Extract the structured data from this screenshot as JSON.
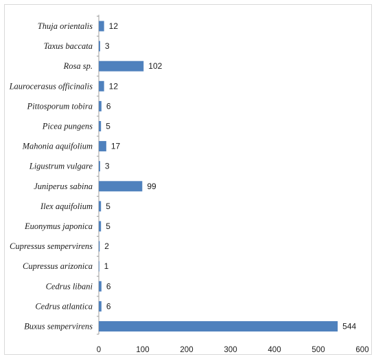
{
  "chart_data": {
    "type": "bar",
    "orientation": "horizontal",
    "categories": [
      "Thuja orientalis",
      "Taxus baccata",
      "Rosa sp.",
      "Laurocerasus officinalis",
      "Pittosporum tobira",
      "Picea pungens",
      "Mahonia aquifolium",
      "Ligustrum vulgare",
      "Juniperus sabina",
      "Ilex aquifolium",
      "Euonymus japonica",
      "Cupressus sempervirens",
      "Cupressus arizonica",
      "Cedrus libani",
      "Cedrus atlantica",
      "Buxus sempervirens"
    ],
    "values": [
      12,
      3,
      102,
      12,
      6,
      5,
      17,
      3,
      99,
      5,
      5,
      2,
      1,
      6,
      6,
      544
    ],
    "data_labels": [
      "12",
      "3",
      "102",
      "12",
      "6",
      "5",
      "17",
      "3",
      "99",
      "5",
      "5",
      "2",
      "1",
      "6",
      "6",
      "544"
    ],
    "xlim": [
      0,
      600
    ],
    "x_ticks": [
      0,
      100,
      200,
      300,
      400,
      500,
      600
    ],
    "x_tick_labels": [
      "0",
      "100",
      "200",
      "300",
      "400",
      "500",
      "600"
    ],
    "title": "",
    "xlabel": "",
    "ylabel": "",
    "grid": false,
    "legend": "none",
    "bar_color": "#4f81bd"
  }
}
